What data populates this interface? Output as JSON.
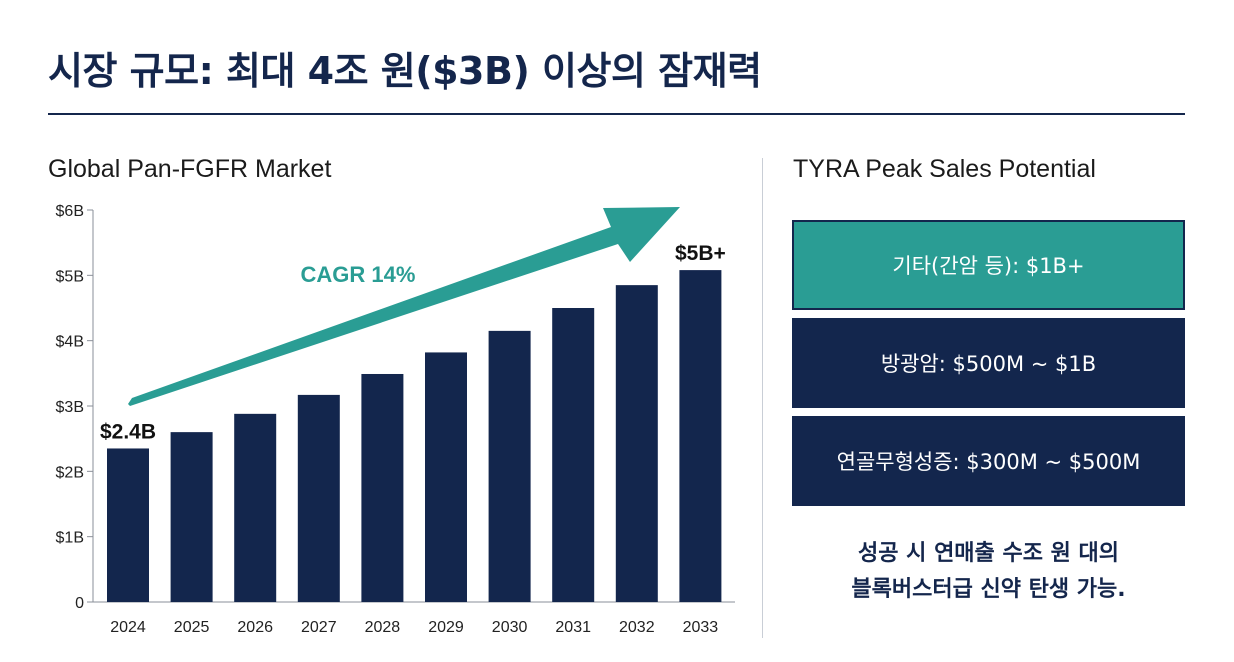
{
  "title": "시장 규모: 최대 4조 원($3B) 이상의 잠재력",
  "left_heading": "Global Pan-FGFR Market",
  "right_heading": "TYRA Peak Sales Potential",
  "chart_data": {
    "type": "bar",
    "title": "Global Pan-FGFR Market",
    "categories": [
      "2024",
      "2025",
      "2026",
      "2027",
      "2028",
      "2029",
      "2030",
      "2031",
      "2032",
      "2033"
    ],
    "values": [
      2.35,
      2.6,
      2.88,
      3.17,
      3.49,
      3.82,
      4.15,
      4.5,
      4.85,
      5.08
    ],
    "unit": "B USD",
    "ylim": [
      0,
      6
    ],
    "yticks": [
      "0",
      "$1B",
      "$2B",
      "$3B",
      "$4B",
      "$5B",
      "$6B"
    ],
    "ytick_values": [
      0,
      1,
      2,
      3,
      4,
      5,
      6
    ],
    "data_labels": [
      {
        "index": 0,
        "text": "$2.4B"
      },
      {
        "index": 9,
        "text": "$5B+"
      }
    ],
    "annotation": "CAGR 14%",
    "bar_color": "#13264d",
    "arrow_color": "#2a9d94",
    "grid": false
  },
  "segments": [
    {
      "label": "기타(간암 등): $1B+",
      "color": "#2a9d94"
    },
    {
      "label": "방광암: $500M ~ $1B",
      "color": "#13264d"
    },
    {
      "label": "연골무형성증: $300M ~ $500M",
      "color": "#13264d"
    }
  ],
  "note_line1": "성공 시 연매출 수조 원 대의",
  "note_line2": "블록버스터급 신약 탄생 가능."
}
